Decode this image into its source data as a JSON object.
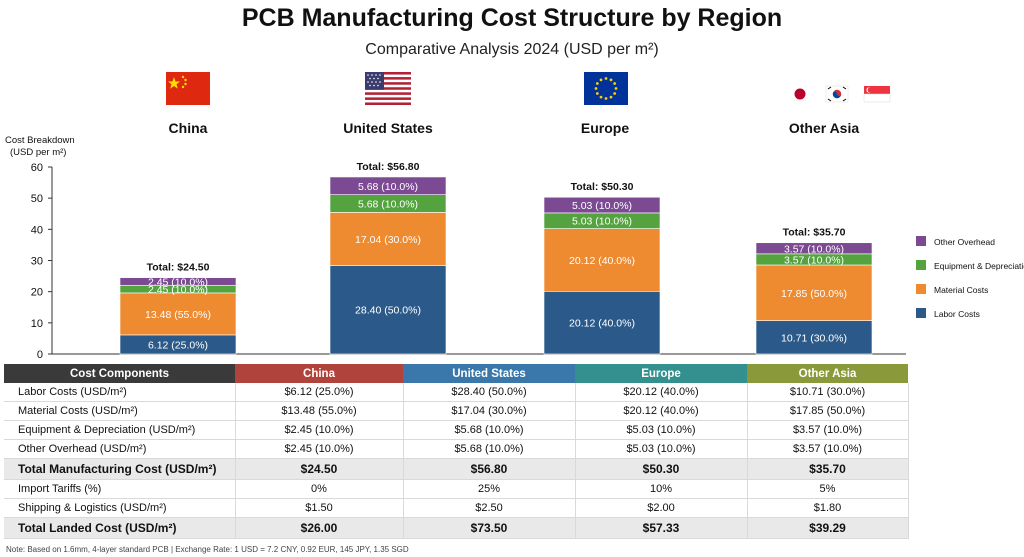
{
  "title": "PCB Manufacturing Cost Structure by Region",
  "subtitle": "Comparative Analysis 2024 (USD per m²)",
  "regions": [
    {
      "name": "China",
      "flag": "china-flag-icon"
    },
    {
      "name": "United States",
      "flag": "us-flag-icon"
    },
    {
      "name": "Europe",
      "flag": "eu-flag-icon"
    },
    {
      "name": "Other Asia",
      "flag": "japan-korea-singapore-flags-icon"
    }
  ],
  "colors": {
    "labor": "#2b5a8a",
    "material": "#ee8a2f",
    "equipment": "#54a33f",
    "overhead": "#7b4a93",
    "china_header": "#b0433b",
    "us_header": "#3a78ab",
    "europe_header": "#34908f",
    "asia_header": "#8a9a3a",
    "components_header": "#3a3a3a"
  },
  "chart_data": {
    "type": "bar",
    "stacked": true,
    "categories": [
      "China",
      "United States",
      "Europe",
      "Other Asia"
    ],
    "ylabel": "Cost Breakdown (USD per m²)",
    "ylim": [
      0,
      60
    ],
    "yticks": [
      0,
      10,
      20,
      30,
      40,
      50,
      60
    ],
    "series": [
      {
        "name": "Labor Costs",
        "values": [
          6.12,
          28.4,
          20.12,
          10.71
        ],
        "labels": [
          "6.12 (25.0%)",
          "28.40 (50.0%)",
          "20.12 (40.0%)",
          "10.71 (30.0%)"
        ]
      },
      {
        "name": "Material Costs",
        "values": [
          13.48,
          17.04,
          20.12,
          17.85
        ],
        "labels": [
          "13.48 (55.0%)",
          "17.04 (30.0%)",
          "20.12 (40.0%)",
          "17.85 (50.0%)"
        ]
      },
      {
        "name": "Equipment & Depreciation",
        "values": [
          2.45,
          5.68,
          5.03,
          3.57
        ],
        "labels": [
          "2.45 (10.0%)",
          "5.68 (10.0%)",
          "5.03 (10.0%)",
          "3.57 (10.0%)"
        ]
      },
      {
        "name": "Other Overhead",
        "values": [
          2.45,
          5.68,
          5.03,
          3.57
        ],
        "labels": [
          "2.45 (10.0%)",
          "5.68 (10.0%)",
          "5.03 (10.0%)",
          "3.57 (10.0%)"
        ]
      }
    ],
    "totals": [
      "Total: $24.50",
      "Total: $56.80",
      "Total: $50.30",
      "Total: $35.70"
    ],
    "legend": [
      "Other Overhead",
      "Equipment & Depreciation",
      "Material Costs",
      "Labor Costs"
    ],
    "legend_position": "right",
    "grid": false
  },
  "table": {
    "headers": [
      "Cost Components",
      "China",
      "United States",
      "Europe",
      "Other Asia"
    ],
    "rows": [
      {
        "label": "Labor Costs (USD/m²)",
        "values": [
          "$6.12 (25.0%)",
          "$28.40 (50.0%)",
          "$20.12 (40.0%)",
          "$10.71 (30.0%)"
        ],
        "bold": false
      },
      {
        "label": "Material Costs (USD/m²)",
        "values": [
          "$13.48 (55.0%)",
          "$17.04 (30.0%)",
          "$20.12 (40.0%)",
          "$17.85 (50.0%)"
        ],
        "bold": false
      },
      {
        "label": "Equipment & Depreciation (USD/m²)",
        "values": [
          "$2.45 (10.0%)",
          "$5.68 (10.0%)",
          "$5.03 (10.0%)",
          "$3.57 (10.0%)"
        ],
        "bold": false
      },
      {
        "label": "Other Overhead (USD/m²)",
        "values": [
          "$2.45 (10.0%)",
          "$5.68 (10.0%)",
          "$5.03 (10.0%)",
          "$3.57 (10.0%)"
        ],
        "bold": false
      },
      {
        "label": "Total Manufacturing Cost (USD/m²)",
        "values": [
          "$24.50",
          "$56.80",
          "$50.30",
          "$35.70"
        ],
        "bold": true
      },
      {
        "label": "Import Tariffs (%)",
        "values": [
          "0%",
          "25%",
          "10%",
          "5%"
        ],
        "bold": false
      },
      {
        "label": "Shipping & Logistics (USD/m²)",
        "values": [
          "$1.50",
          "$2.50",
          "$2.00",
          "$1.80"
        ],
        "bold": false
      },
      {
        "label": "Total Landed Cost (USD/m²)",
        "values": [
          "$26.00",
          "$73.50",
          "$57.33",
          "$39.29"
        ],
        "bold": true
      }
    ]
  },
  "note": "Note: Based on 1.6mm, 4-layer standard PCB | Exchange Rate: 1 USD = 7.2 CNY, 0.92 EUR, 145 JPY, 1.35 SGD"
}
